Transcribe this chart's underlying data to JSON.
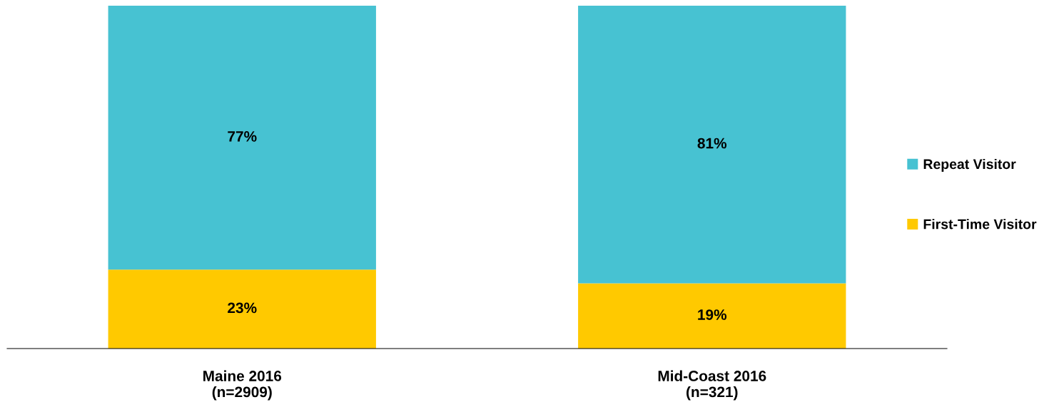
{
  "chart_data": {
    "type": "bar",
    "stacked": true,
    "legend": "right",
    "grid": false,
    "categories": [
      "Maine 2016\n(n=2909)",
      "Mid-Coast 2016\n(n=321)"
    ],
    "series": [
      {
        "name": "First-Time Visitor",
        "color": "#ffc900",
        "values": [
          23,
          19
        ],
        "value_labels": [
          "23%",
          "19%"
        ]
      },
      {
        "name": "Repeat Visitor",
        "color": "#47c2d2",
        "values": [
          77,
          81
        ],
        "value_labels": [
          "77%",
          "81%"
        ]
      }
    ]
  }
}
